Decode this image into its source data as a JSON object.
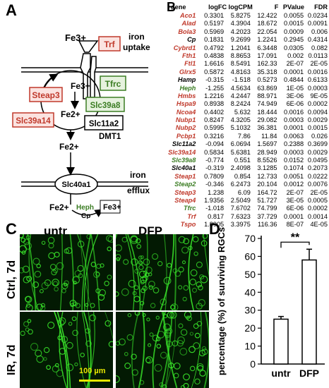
{
  "panels": {
    "a": "A",
    "b": "B",
    "c": "C",
    "d": "D"
  },
  "diagram": {
    "fe3_top": "Fe3+",
    "trf": "Trf",
    "iron_uptake": "iron uptake",
    "tfrc": "Tfrc",
    "fe3_inner": "Fe3+",
    "steap3": "Steap3",
    "fe2_inner": "Fe2+",
    "slc39a8": "Slc39a8",
    "slc39a14": "Slc39a14",
    "slc11a2": "Slc11a2",
    "dmt1": "DMT1",
    "fe2_mid": "Fe2+",
    "slc40a1": "Slc40a1",
    "iron_efflux": "iron efflux",
    "fe2_bottom": "Fe2+",
    "heph": "Heph",
    "cp": "Cp",
    "fe3_bottom": "Fe3+",
    "colors": {
      "red_box": "#c0392b",
      "green_box": "#3b7d23",
      "red_fill": "#fbe3e0",
      "green_fill": "#e6f2de"
    }
  },
  "table": {
    "headers": [
      "gene",
      "logFC",
      "logCPM",
      "F",
      "PValue",
      "FDR"
    ],
    "rows": [
      {
        "gene": "Aco1",
        "color": "red",
        "logFC": "0.3301",
        "logCPM": "5.8275",
        "F": "12.422",
        "PValue": "0.0055",
        "FDR": "0.0234"
      },
      {
        "gene": "Alad",
        "color": "red",
        "logFC": "0.5197",
        "logCPM": "4.3904",
        "F": "18.672",
        "PValue": "0.0015",
        "FDR": "0.0091"
      },
      {
        "gene": "Bola3",
        "color": "red",
        "logFC": "0.5969",
        "logCPM": "4.2023",
        "F": "22.054",
        "PValue": "0.0009",
        "FDR": "0.006"
      },
      {
        "gene": "Cp",
        "color": "black",
        "logFC": "0.1831",
        "logCPM": "9.2699",
        "F": "1.2241",
        "PValue": "0.2945",
        "FDR": "0.4314"
      },
      {
        "gene": "Cybrd1",
        "color": "red",
        "logFC": "0.4792",
        "logCPM": "1.2041",
        "F": "6.3448",
        "PValue": "0.0305",
        "FDR": "0.082"
      },
      {
        "gene": "Fth1",
        "color": "red",
        "logFC": "0.4838",
        "logCPM": "8.8653",
        "F": "17.091",
        "PValue": "0.002",
        "FDR": "0.0113"
      },
      {
        "gene": "Ftl1",
        "color": "red",
        "logFC": "1.6616",
        "logCPM": "8.5491",
        "F": "162.33",
        "PValue": "2E-07",
        "FDR": "2E-05"
      },
      {
        "gene": "Glrx5",
        "color": "red",
        "logFC": "0.5872",
        "logCPM": "4.8163",
        "F": "35.318",
        "PValue": "0.0001",
        "FDR": "0.0016"
      },
      {
        "gene": "Hamp",
        "color": "black",
        "logFC": "-0.315",
        "logCPM": "-1.518",
        "F": "0.5273",
        "PValue": "0.4844",
        "FDR": "0.6133"
      },
      {
        "gene": "Heph",
        "color": "green",
        "logFC": "-1.255",
        "logCPM": "4.5634",
        "F": "63.869",
        "PValue": "1E-05",
        "FDR": "0.0003"
      },
      {
        "gene": "Hmbs",
        "color": "red",
        "logFC": "1.2216",
        "logCPM": "4.2447",
        "F": "88.971",
        "PValue": "3E-06",
        "FDR": "9E-05"
      },
      {
        "gene": "Hspa9",
        "color": "red",
        "logFC": "0.8938",
        "logCPM": "8.2424",
        "F": "74.949",
        "PValue": "6E-06",
        "FDR": "0.0002"
      },
      {
        "gene": "Ncoa4",
        "color": "red",
        "logFC": "0.4402",
        "logCPM": "5.632",
        "F": "18.444",
        "PValue": "0.0016",
        "FDR": "0.0094"
      },
      {
        "gene": "Nubp1",
        "color": "red",
        "logFC": "0.8247",
        "logCPM": "4.3205",
        "F": "29.082",
        "PValue": "0.0003",
        "FDR": "0.0029"
      },
      {
        "gene": "Nubp2",
        "color": "red",
        "logFC": "0.5995",
        "logCPM": "5.1032",
        "F": "36.381",
        "PValue": "0.0001",
        "FDR": "0.0015"
      },
      {
        "gene": "Pcbp1",
        "color": "red",
        "logFC": "0.3216",
        "logCPM": "7.86",
        "F": "11.84",
        "PValue": "0.0063",
        "FDR": "0.026"
      },
      {
        "gene": "Slc11a2",
        "color": "black",
        "logFC": "-0.094",
        "logCPM": "6.0694",
        "F": "1.5697",
        "PValue": "0.2388",
        "FDR": "0.3699"
      },
      {
        "gene": "Slc39a14",
        "color": "red",
        "logFC": "0.5834",
        "logCPM": "5.6381",
        "F": "28.949",
        "PValue": "0.0003",
        "FDR": "0.0029"
      },
      {
        "gene": "Slc39a8",
        "color": "green",
        "logFC": "-0.774",
        "logCPM": "0.551",
        "F": "8.5526",
        "PValue": "0.0152",
        "FDR": "0.0495"
      },
      {
        "gene": "Slc40a1",
        "color": "black",
        "logFC": "-0.319",
        "logCPM": "2.4098",
        "F": "3.1285",
        "PValue": "0.1074",
        "FDR": "0.2073"
      },
      {
        "gene": "Steap1",
        "color": "red",
        "logFC": "0.7809",
        "logCPM": "0.854",
        "F": "12.733",
        "PValue": "0.0051",
        "FDR": "0.0222"
      },
      {
        "gene": "Steap2",
        "color": "green",
        "logFC": "-0.346",
        "logCPM": "6.2473",
        "F": "20.104",
        "PValue": "0.0012",
        "FDR": "0.0076"
      },
      {
        "gene": "Steap3",
        "color": "red",
        "logFC": "1.238",
        "logCPM": "6.09",
        "F": "164.72",
        "PValue": "2E-07",
        "FDR": "2E-05"
      },
      {
        "gene": "Steap4",
        "color": "red",
        "logFC": "1.9356",
        "logCPM": "2.5049",
        "F": "51.727",
        "PValue": "3E-05",
        "FDR": "0.0005"
      },
      {
        "gene": "Tfrc",
        "color": "green",
        "logFC": "-1.018",
        "logCPM": "7.6702",
        "F": "74.799",
        "PValue": "6E-06",
        "FDR": "0.0002"
      },
      {
        "gene": "Trf",
        "color": "red",
        "logFC": "0.817",
        "logCPM": "7.6323",
        "F": "37.729",
        "PValue": "0.0001",
        "FDR": "0.0014"
      },
      {
        "gene": "Tspo",
        "color": "red",
        "logFC": "1.8905",
        "logCPM": "3.3975",
        "F": "116.36",
        "PValue": "8E-07",
        "FDR": "4E-05"
      }
    ]
  },
  "micrographs": {
    "col_untr": "untr",
    "col_dfp": "DFP",
    "row_ctrl": "Ctrl, 7d",
    "row_ir": "IR, 7d",
    "scale_bar": "100 µm",
    "colors": {
      "background": "#031a03",
      "signal": "#39e52a",
      "scale": "#e6e600"
    }
  },
  "chart_data": {
    "type": "bar",
    "categories": [
      "untr",
      "DFP"
    ],
    "values": [
      25,
      58
    ],
    "errors": [
      1.5,
      6
    ],
    "ylabel": "percentage (%) of surviving RGCs",
    "ylim": [
      0,
      70
    ],
    "yticks": [
      0,
      10,
      20,
      30,
      40,
      50,
      60,
      70
    ],
    "annotation": "**",
    "grid": false
  }
}
